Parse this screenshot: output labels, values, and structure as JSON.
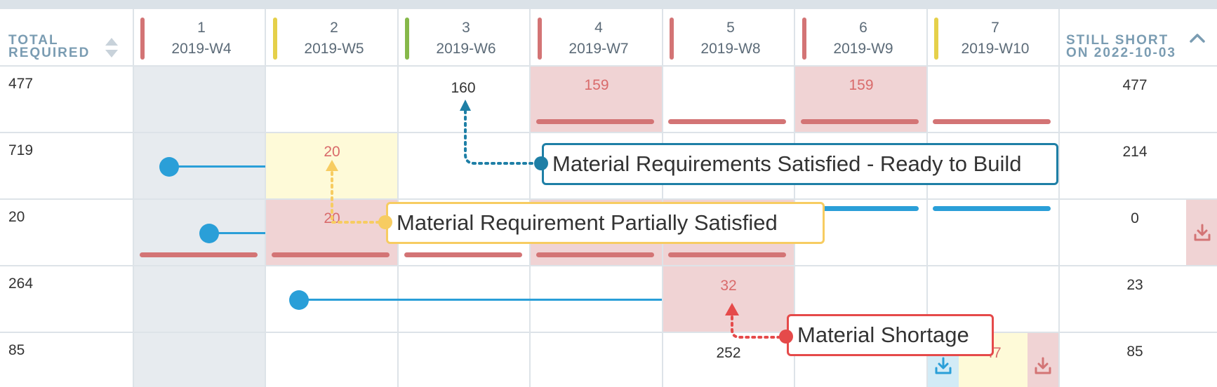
{
  "header": {
    "total_label_line1": "TOTAL",
    "total_label_line2": "REQUIRED",
    "short_label_line1": "STILL SHORT",
    "short_label_line2": "ON 2022-10-03",
    "weeks": [
      {
        "num": "1",
        "label": "2019-W4",
        "status_color": "#d37475"
      },
      {
        "num": "2",
        "label": "2019-W5",
        "status_color": "#e5d04a"
      },
      {
        "num": "3",
        "label": "2019-W6",
        "status_color": "#86b84a"
      },
      {
        "num": "4",
        "label": "2019-W7",
        "status_color": "#d37475"
      },
      {
        "num": "5",
        "label": "2019-W8",
        "status_color": "#d37475"
      },
      {
        "num": "6",
        "label": "2019-W9",
        "status_color": "#d37475"
      },
      {
        "num": "7",
        "label": "2019-W10",
        "status_color": "#e5d04a"
      }
    ]
  },
  "rows": [
    {
      "total": "477",
      "short": "477",
      "cells": {
        "w3": "160",
        "w4": "159",
        "w6": "159"
      }
    },
    {
      "total": "719",
      "short": "214",
      "cells": {
        "w2": "20"
      }
    },
    {
      "total": "20",
      "short": "0",
      "cells": {
        "w2": "20"
      }
    },
    {
      "total": "264",
      "short": "23",
      "cells": {
        "w5": "32"
      }
    },
    {
      "total": "85",
      "short": "85",
      "cells": {
        "w5": "252",
        "w7": "47"
      }
    }
  ],
  "callouts": {
    "ready": "Material Requirements Satisfied - Ready to Build",
    "partial": "Material Requirement Partially Satisfied",
    "shortage": "Material Shortage"
  },
  "colors": {
    "accent_blue": "#2a9fd8",
    "shortage_red": "#d37475",
    "partial_yellow": "#f7cc61",
    "satisfied_callout": "#1e7fa6",
    "shortage_callout": "#e54a4a"
  },
  "icons": [
    "sort-icon",
    "collapse-chevron-icon",
    "download-icon"
  ]
}
